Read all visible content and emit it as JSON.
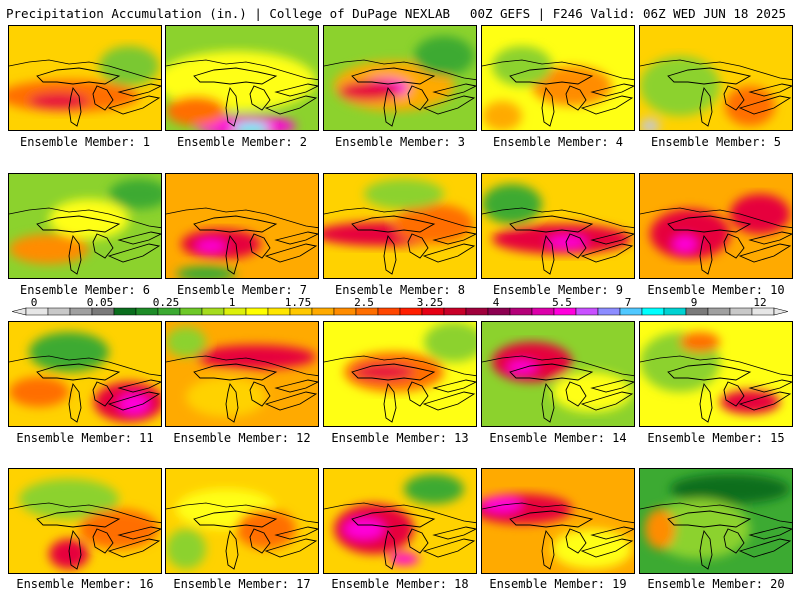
{
  "header": {
    "left": "Precipitation Accumulation (in.) | College of DuPage NEXLAB",
    "right": "00Z GEFS | F246 Valid: 06Z WED JUN 18 2025"
  },
  "member_label_prefix": "Ensemble Member: ",
  "members": [
    "1",
    "2",
    "3",
    "4",
    "5",
    "6",
    "7",
    "8",
    "9",
    "10",
    "11",
    "12",
    "13",
    "14",
    "15",
    "16",
    "17",
    "18",
    "19",
    "20"
  ],
  "colorbar": {
    "labels": [
      "0",
      "0.05",
      "0.25",
      "1",
      "1.75",
      "2.5",
      "3.25",
      "4",
      "5.5",
      "7",
      "9",
      "12"
    ],
    "colors": [
      "#e6e6e6",
      "#c8c8c8",
      "#a0a0a0",
      "#7a7a7a",
      "#0a6e1e",
      "#1e8c28",
      "#3caa32",
      "#6ec828",
      "#a5dc1e",
      "#dcf00a",
      "#ffff00",
      "#ffe600",
      "#ffc800",
      "#ffaa00",
      "#ff8c00",
      "#ff6e00",
      "#ff4600",
      "#ff1e00",
      "#e60014",
      "#c80028",
      "#a0003c",
      "#8c0050",
      "#b40078",
      "#dc00aa",
      "#ff00dc",
      "#c850ff",
      "#8c8cff",
      "#50c8ff",
      "#00ffff",
      "#00d2d2",
      "#7a7a7a",
      "#a0a0a0",
      "#c8c8c8",
      "#e6e6e6"
    ]
  },
  "field": {
    "base_colors": [
      "#ffd200",
      "#8cd22d",
      "#ffff14",
      "#ffaa00",
      "#3caa32"
    ],
    "members": [
      {
        "base": 0,
        "blobs": [
          [
            "#ff6e00",
            60,
            70,
            70,
            16
          ],
          [
            "#e6003c",
            50,
            75,
            30,
            8
          ],
          [
            "#7ac832",
            120,
            40,
            30,
            20
          ]
        ]
      },
      {
        "base": 1,
        "blobs": [
          [
            "#ffff14",
            70,
            55,
            80,
            30
          ],
          [
            "#ff00dc",
            80,
            100,
            50,
            10
          ],
          [
            "#00ffff",
            85,
            102,
            18,
            5
          ],
          [
            "#ff6e00",
            30,
            85,
            30,
            15
          ]
        ]
      },
      {
        "base": 1,
        "blobs": [
          [
            "#ffaa00",
            70,
            60,
            60,
            25
          ],
          [
            "#ff00dc",
            60,
            62,
            25,
            10
          ],
          [
            "#e6003c",
            45,
            65,
            30,
            10
          ],
          [
            "#3caa32",
            120,
            30,
            30,
            20
          ]
        ]
      },
      {
        "base": 2,
        "blobs": [
          [
            "#ff8c00",
            90,
            60,
            40,
            20
          ],
          [
            "#8cd22d",
            40,
            40,
            30,
            20
          ],
          [
            "#ffaa00",
            20,
            90,
            20,
            15
          ]
        ]
      },
      {
        "base": 0,
        "blobs": [
          [
            "#8cd22d",
            40,
            60,
            40,
            30
          ],
          [
            "#ff6e00",
            110,
            80,
            25,
            20
          ],
          [
            "#c8c8c8",
            10,
            100,
            10,
            8
          ]
        ]
      },
      {
        "base": 1,
        "blobs": [
          [
            "#ff8c00",
            40,
            75,
            40,
            15
          ],
          [
            "#ffff14",
            80,
            45,
            40,
            20
          ],
          [
            "#3caa32",
            130,
            20,
            30,
            15
          ]
        ]
      },
      {
        "base": 3,
        "blobs": [
          [
            "#e6003c",
            55,
            70,
            40,
            15
          ],
          [
            "#ff00dc",
            45,
            72,
            15,
            6
          ],
          [
            "#3caa32",
            40,
            100,
            30,
            8
          ]
        ]
      },
      {
        "base": 0,
        "blobs": [
          [
            "#e6003c",
            60,
            60,
            70,
            12
          ],
          [
            "#ff6e00",
            110,
            50,
            40,
            20
          ],
          [
            "#8cd22d",
            80,
            20,
            40,
            15
          ]
        ]
      },
      {
        "base": 0,
        "blobs": [
          [
            "#e6003c",
            80,
            65,
            70,
            15
          ],
          [
            "#ff00dc",
            85,
            68,
            20,
            6
          ],
          [
            "#3caa32",
            30,
            30,
            30,
            20
          ]
        ]
      },
      {
        "base": 3,
        "blobs": [
          [
            "#e6003c",
            50,
            60,
            40,
            25
          ],
          [
            "#ff00dc",
            45,
            70,
            12,
            8
          ],
          [
            "#e6003c",
            120,
            40,
            30,
            20
          ]
        ]
      },
      {
        "base": 0,
        "blobs": [
          [
            "#3caa32",
            60,
            30,
            40,
            20
          ],
          [
            "#e6003c",
            120,
            80,
            35,
            20
          ],
          [
            "#ff00dc",
            125,
            82,
            15,
            10
          ],
          [
            "#ff6e00",
            30,
            70,
            30,
            15
          ]
        ]
      },
      {
        "base": 3,
        "blobs": [
          [
            "#e6003c",
            90,
            35,
            60,
            12
          ],
          [
            "#ffd200",
            60,
            75,
            40,
            20
          ],
          [
            "#8cd22d",
            20,
            20,
            20,
            15
          ]
        ]
      },
      {
        "base": 2,
        "blobs": [
          [
            "#ff6e00",
            70,
            50,
            50,
            20
          ],
          [
            "#e6003c",
            60,
            50,
            30,
            8
          ],
          [
            "#8cd22d",
            130,
            20,
            30,
            20
          ]
        ]
      },
      {
        "base": 1,
        "blobs": [
          [
            "#e6003c",
            50,
            40,
            40,
            20
          ],
          [
            "#ff00dc",
            40,
            45,
            15,
            6
          ],
          [
            "#ffff14",
            110,
            70,
            40,
            20
          ]
        ]
      },
      {
        "base": 2,
        "blobs": [
          [
            "#8cd22d",
            40,
            40,
            40,
            30
          ],
          [
            "#e6003c",
            110,
            80,
            30,
            12
          ],
          [
            "#ff6e00",
            60,
            20,
            20,
            10
          ]
        ]
      },
      {
        "base": 0,
        "blobs": [
          [
            "#8cd22d",
            60,
            30,
            50,
            20
          ],
          [
            "#e6003c",
            60,
            85,
            20,
            15
          ],
          [
            "#ff6e00",
            110,
            60,
            40,
            20
          ]
        ]
      },
      {
        "base": 0,
        "blobs": [
          [
            "#ffff14",
            60,
            40,
            50,
            20
          ],
          [
            "#ff6e00",
            100,
            60,
            30,
            20
          ],
          [
            "#8cd22d",
            20,
            80,
            20,
            20
          ]
        ]
      },
      {
        "base": 0,
        "blobs": [
          [
            "#e6003c",
            50,
            60,
            40,
            25
          ],
          [
            "#ff00dc",
            40,
            60,
            20,
            10
          ],
          [
            "#ff00dc",
            80,
            90,
            15,
            6
          ],
          [
            "#3caa32",
            110,
            20,
            30,
            15
          ]
        ]
      },
      {
        "base": 3,
        "blobs": [
          [
            "#e6003c",
            40,
            40,
            50,
            15
          ],
          [
            "#ff00dc",
            20,
            35,
            20,
            8
          ],
          [
            "#ffff14",
            110,
            80,
            40,
            20
          ]
        ]
      },
      {
        "base": 4,
        "blobs": [
          [
            "#0a6e1e",
            90,
            20,
            60,
            15
          ],
          [
            "#8cd22d",
            60,
            60,
            50,
            30
          ],
          [
            "#ff8c00",
            20,
            60,
            15,
            20
          ]
        ]
      }
    ]
  }
}
